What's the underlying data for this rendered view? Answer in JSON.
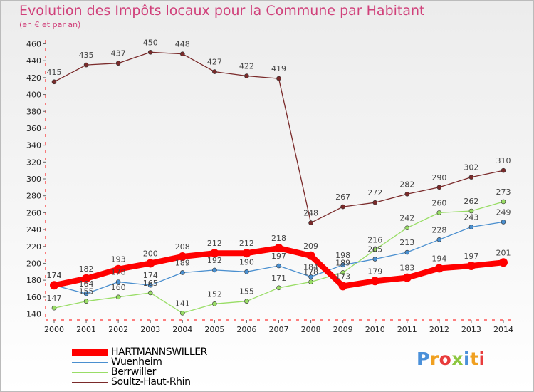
{
  "header": {
    "title": "Evolution des Impôts locaux pour la Commune par Habitant",
    "subtitle": "(en € et par an)"
  },
  "logo": {
    "text": "Proxiti",
    "colors": [
      "#4a90d9",
      "#f0a020",
      "#e83c3c",
      "#8cc63f"
    ]
  },
  "chart_data": {
    "type": "line",
    "title": "Evolution des Impôts locaux pour la Commune par Habitant",
    "subtitle": "(en € et par an)",
    "xlabel": "",
    "ylabel": "",
    "x": [
      "2000",
      "2001",
      "2002",
      "2003",
      "2004",
      "2005",
      "2006",
      "2007",
      "2008",
      "2009",
      "2010",
      "2011",
      "2012",
      "2013",
      "2014"
    ],
    "yticks": [
      140,
      160,
      180,
      200,
      220,
      240,
      260,
      280,
      300,
      320,
      340,
      360,
      380,
      400,
      420,
      440,
      460
    ],
    "ylim": [
      130,
      465
    ],
    "grid": false,
    "legend_position": "bottom-left",
    "series": [
      {
        "name": "HARTMANNSWILLER",
        "color": "#ff0000",
        "emphasis": "thick",
        "labels_shown": true,
        "values": [
          174,
          182,
          193,
          200,
          208,
          212,
          212,
          218,
          209,
          173,
          179,
          183,
          194,
          197,
          201
        ]
      },
      {
        "name": "Wuenheim",
        "color": "#4a8fcf",
        "emphasis": "thin",
        "labels_shown": true,
        "values": [
          174,
          164,
          178,
          174,
          189,
          192,
          190,
          197,
          184,
          198,
          205,
          213,
          228,
          243,
          249
        ]
      },
      {
        "name": "Berrwiller",
        "color": "#99dd66",
        "emphasis": "thin",
        "labels_shown": true,
        "values": [
          147,
          155,
          160,
          165,
          141,
          152,
          155,
          171,
          178,
          189,
          216,
          242,
          260,
          262,
          273
        ]
      },
      {
        "name": "Soultz-Haut-Rhin",
        "color": "#7a2a2a",
        "emphasis": "thin",
        "labels_shown": true,
        "values": [
          415,
          435,
          437,
          450,
          448,
          427,
          422,
          419,
          248,
          267,
          272,
          282,
          290,
          302,
          310
        ]
      }
    ]
  }
}
